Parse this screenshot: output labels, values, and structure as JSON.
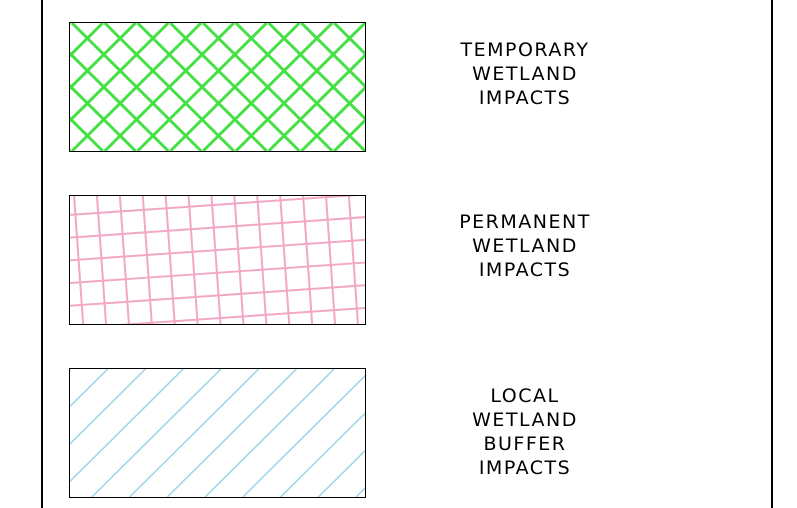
{
  "legend": {
    "items": [
      {
        "pattern": "diagonal-crosshatch",
        "color": "#44e044",
        "lines": [
          "TEMPORARY",
          "WETLAND",
          "IMPACTS"
        ]
      },
      {
        "pattern": "rotated-grid",
        "color": "#f2a7c6",
        "lines": [
          "PERMANENT",
          "WETLAND",
          "IMPACTS"
        ]
      },
      {
        "pattern": "diagonal-hatch",
        "color": "#9fd6ea",
        "lines": [
          "LOCAL",
          "WETLAND",
          "BUFFER",
          "IMPACTS"
        ]
      }
    ]
  }
}
